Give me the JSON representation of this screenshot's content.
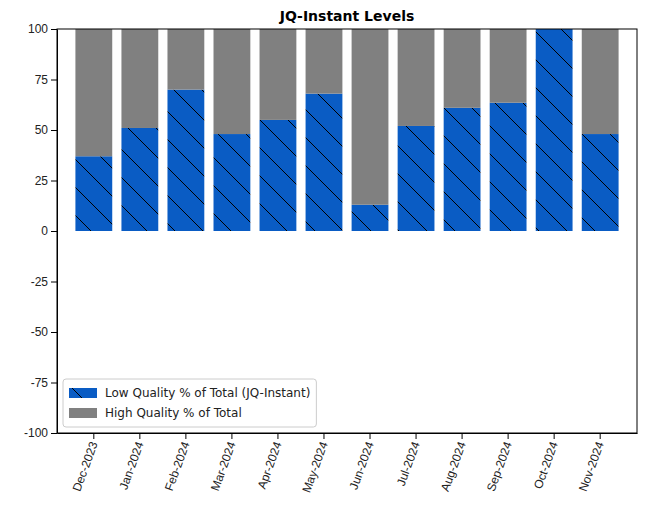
{
  "chart_data": {
    "type": "bar",
    "title": "JQ-Instant Levels",
    "categories": [
      "Dec-2023",
      "Jan-2024",
      "Feb-2024",
      "Mar-2024",
      "Apr-2024",
      "May-2024",
      "Jun-2024",
      "Jul-2024",
      "Aug-2024",
      "Sep-2024",
      "Oct-2024",
      "Nov-2024"
    ],
    "series": [
      {
        "name": "Low Quality % of Total (JQ-Instant)",
        "color": "#0a5cc4",
        "values": [
          37,
          51,
          70,
          48,
          55,
          68,
          13,
          52,
          61,
          63.5,
          100,
          48
        ]
      },
      {
        "name": "High Quality % of Total",
        "color": "#808080",
        "values": [
          63,
          49,
          30,
          52,
          45,
          32,
          87,
          48,
          39,
          36.5,
          0,
          52
        ]
      }
    ],
    "ylim": [
      -100,
      100
    ],
    "yticks": [
      -100,
      -75,
      -50,
      -25,
      0,
      25,
      50,
      75,
      100
    ],
    "stacked": true,
    "grid": false,
    "legend": "lower left"
  }
}
